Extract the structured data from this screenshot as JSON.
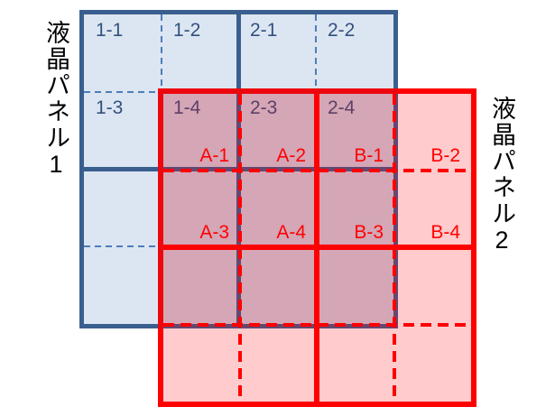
{
  "diagram": {
    "panel1": {
      "name": "液晶パネル1",
      "grid": "4x4",
      "cell_labels": [
        "1-1",
        "1-2",
        "2-1",
        "2-2",
        "1-3",
        "1-4",
        "2-3",
        "2-4"
      ]
    },
    "panel2": {
      "name": "液晶パネル2",
      "grid": "4x4",
      "cell_labels": [
        "A-1",
        "A-2",
        "B-1",
        "B-2",
        "A-3",
        "A-4",
        "B-3",
        "B-4"
      ]
    }
  },
  "colors": {
    "blue_border": "#3A5F8F",
    "blue_dash": "#4E7DBA",
    "blue_fill": "#DCE6F2",
    "blue_text": "#33517E",
    "red": "#FF0000",
    "red_fill": "rgba(255,10,15,0.21)",
    "overlap_tint": "rgba(110,50,110,0.12)",
    "panel_label_text": "#000000"
  }
}
